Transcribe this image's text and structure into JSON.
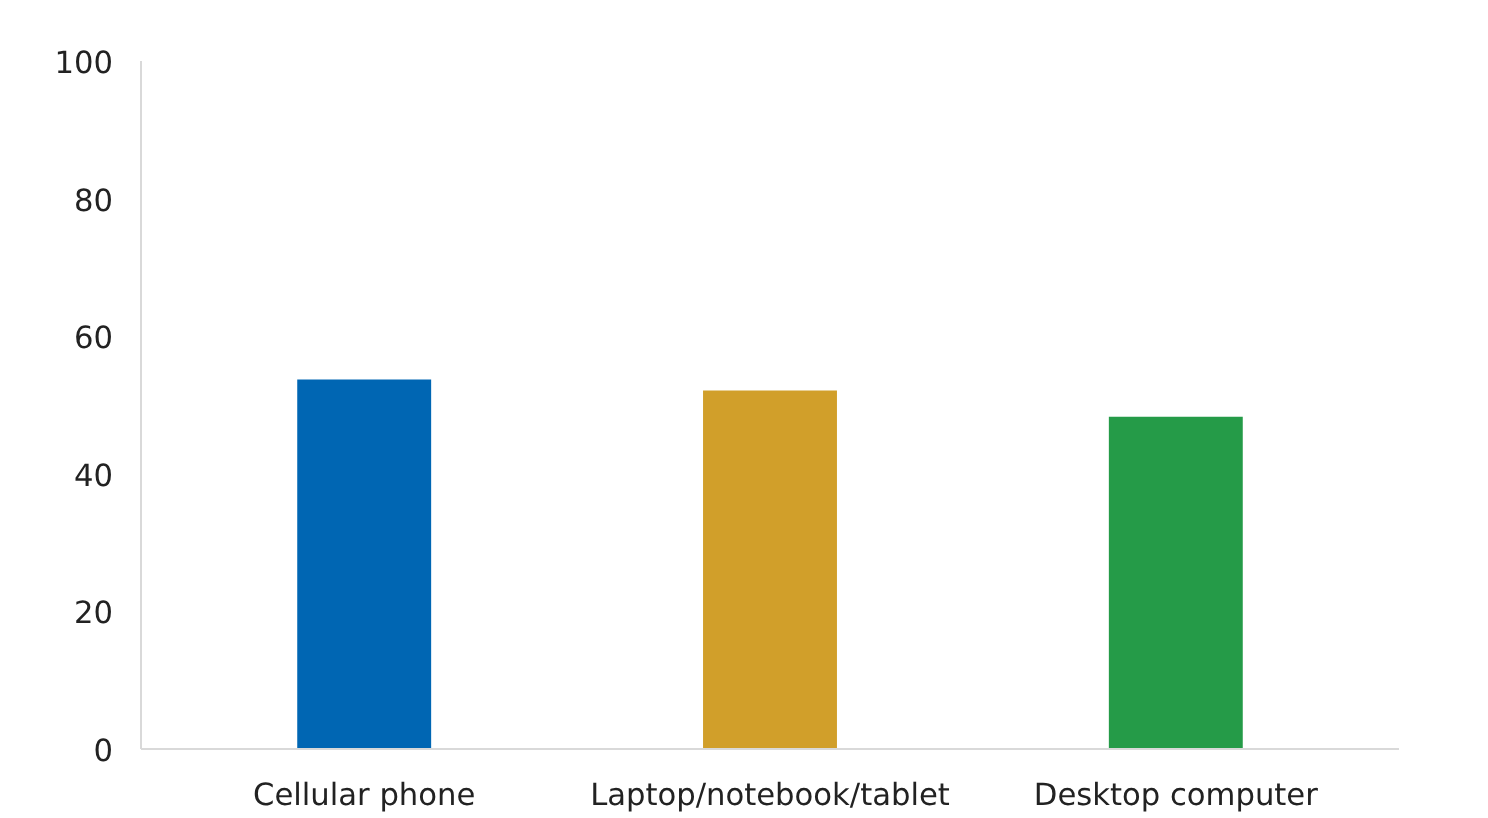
{
  "chart_data": {
    "type": "bar",
    "categories": [
      "Cellular phone",
      "Laptop/notebook/tablet",
      "Desktop computer"
    ],
    "values": [
      53.7,
      52.1,
      48.3
    ],
    "colors": [
      "#0066b3",
      "#d19f2a",
      "#259b48"
    ],
    "ylim": [
      0,
      100
    ],
    "yticks": [
      0,
      20,
      40,
      60,
      80,
      100
    ],
    "grid": false
  }
}
